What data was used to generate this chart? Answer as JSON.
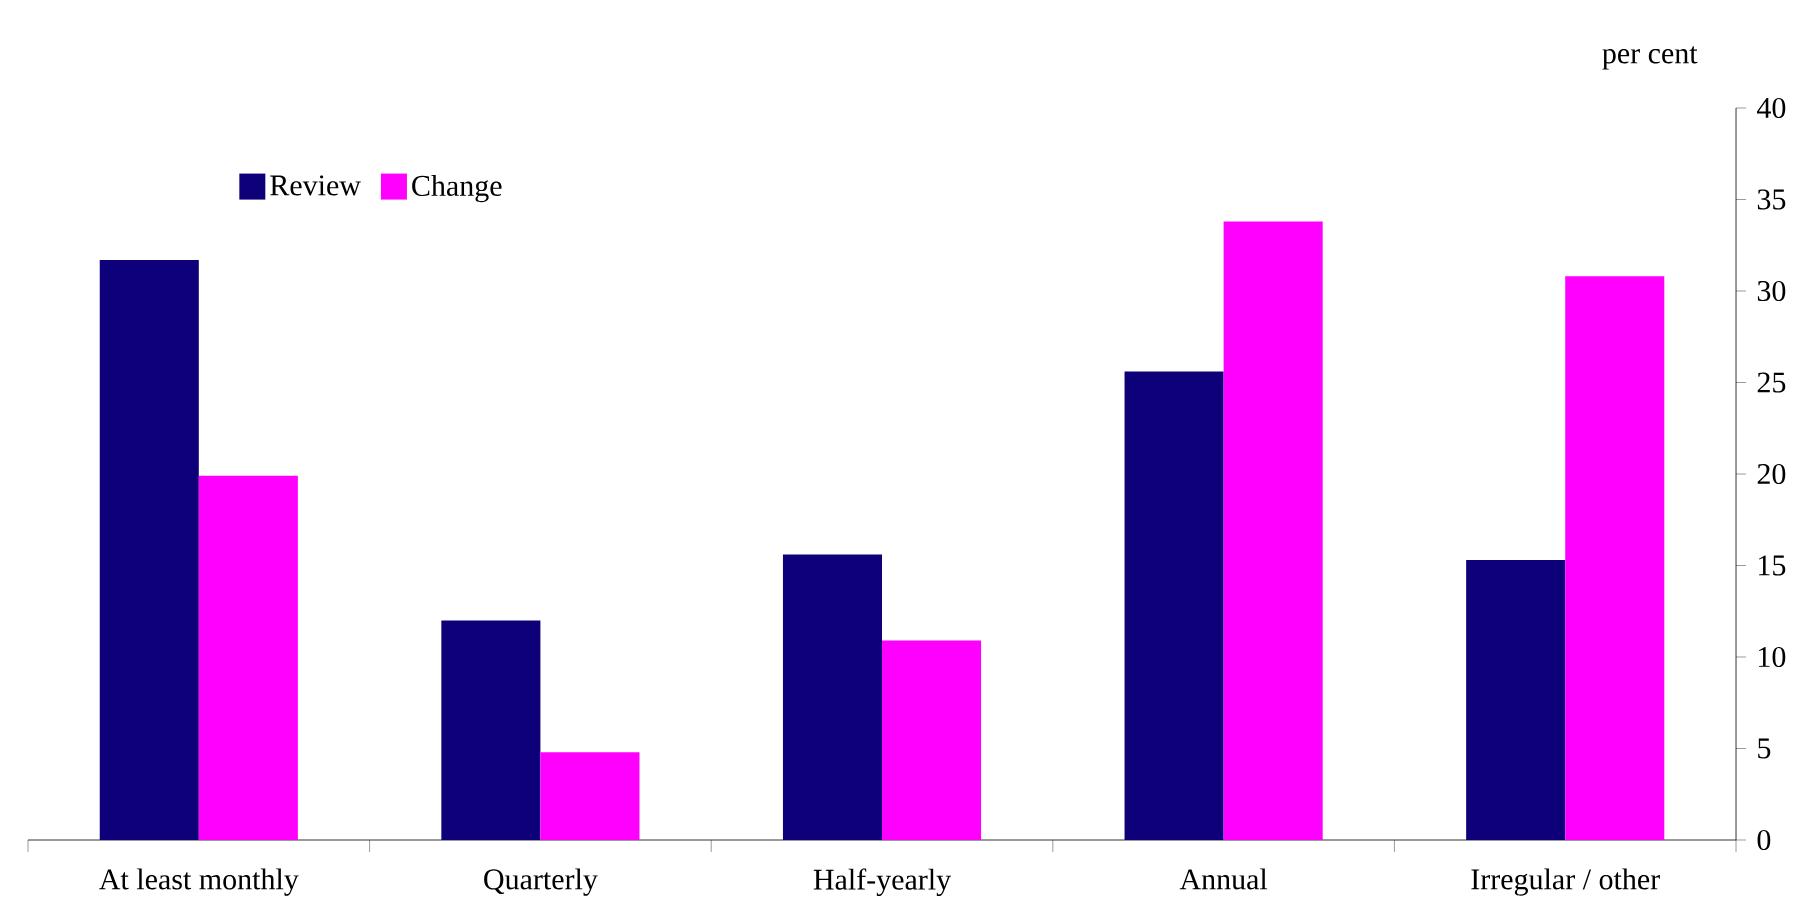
{
  "chart_data": {
    "type": "bar",
    "categories": [
      "At least monthly",
      "Quarterly",
      "Half-yearly",
      "Annual",
      "Irregular / other"
    ],
    "series": [
      {
        "name": "Review",
        "color": "#0d0078",
        "values": [
          31.7,
          12.0,
          15.6,
          25.6,
          15.3
        ]
      },
      {
        "name": "Change",
        "color": "#ff00ff",
        "values": [
          19.9,
          4.8,
          10.9,
          33.8,
          30.8
        ]
      }
    ],
    "ylabel": "per cent",
    "ylim": [
      0,
      40
    ],
    "yticks": [
      0,
      5,
      10,
      15,
      20,
      25,
      30,
      35,
      40
    ],
    "legend": "top left"
  }
}
